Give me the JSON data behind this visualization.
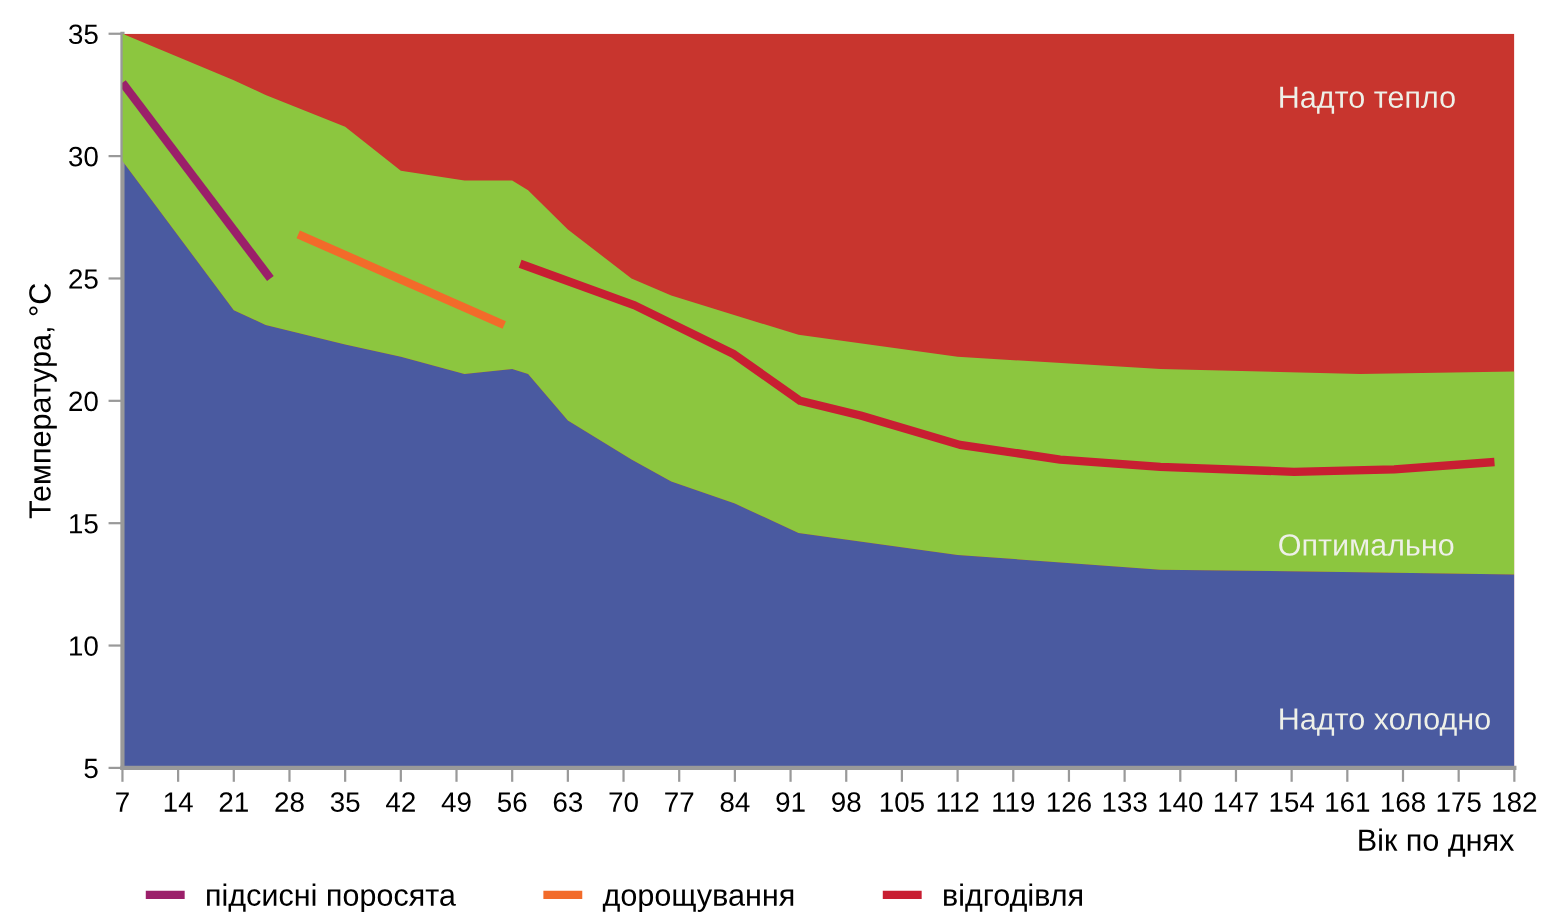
{
  "chart_data": {
    "type": "line",
    "xlabel": "Вік по днях",
    "ylabel": "Температура, °C",
    "xlim": [
      7,
      182
    ],
    "xticks": [
      7,
      14,
      21,
      28,
      35,
      42,
      49,
      56,
      63,
      70,
      77,
      84,
      91,
      98,
      105,
      112,
      119,
      126,
      133,
      140,
      147,
      154,
      161,
      168,
      175,
      182
    ],
    "ylim": [
      5,
      35
    ],
    "yticks": [
      5,
      10,
      15,
      20,
      25,
      30,
      35
    ],
    "grid": false,
    "legend": "bottom",
    "marker": "none",
    "line_style": "solid",
    "stacked": true,
    "bands": [
      {
        "axis": "y",
        "from": 5,
        "to": 35,
        "color": "#c8352e"
      }
    ],
    "x": [
      7,
      21,
      25,
      35,
      42,
      50,
      56,
      58,
      63,
      71,
      76,
      84,
      92,
      112,
      137.5,
      162.6,
      182
    ],
    "series": [
      {
        "type": "area",
        "color": "#4a5aa0",
        "values": [
          29.8,
          23.7,
          23.1,
          22.3,
          21.8,
          21.1,
          21.3,
          21.1,
          19.2,
          17.6,
          16.7,
          15.8,
          14.6,
          13.7,
          13.1,
          13.0,
          12.9
        ]
      },
      {
        "type": "area",
        "color": "#8cc63f",
        "values": [
          5.2,
          9.4,
          9.4,
          8.9,
          7.6,
          7.9,
          7.7,
          7.5,
          7.8,
          7.4,
          7.6,
          7.7,
          8.1,
          8.1,
          8.2,
          8.1,
          8.3
        ]
      },
      {
        "name": "підсисні поросята",
        "color": "#9b1f6a",
        "x": [
          7,
          25.6
        ],
        "values": [
          33.0,
          25.0
        ]
      },
      {
        "name": "дорощування",
        "color": "#f26b2a",
        "x": [
          29.1,
          55.0
        ],
        "values": [
          26.8,
          23.1
        ]
      },
      {
        "name": "відгодівля",
        "color": "#c81e32",
        "x": [
          57.0,
          71.4,
          83.9,
          92.2,
          99.8,
          112.3,
          124.9,
          137.5,
          154.3,
          166.9,
          179.5
        ],
        "values": [
          25.6,
          23.9,
          21.9,
          20.0,
          19.4,
          18.2,
          17.6,
          17.3,
          17.1,
          17.2,
          17.5
        ]
      }
    ],
    "annotations": [
      "Надто тепло",
      "Оптимально",
      "Надто холодно"
    ]
  }
}
